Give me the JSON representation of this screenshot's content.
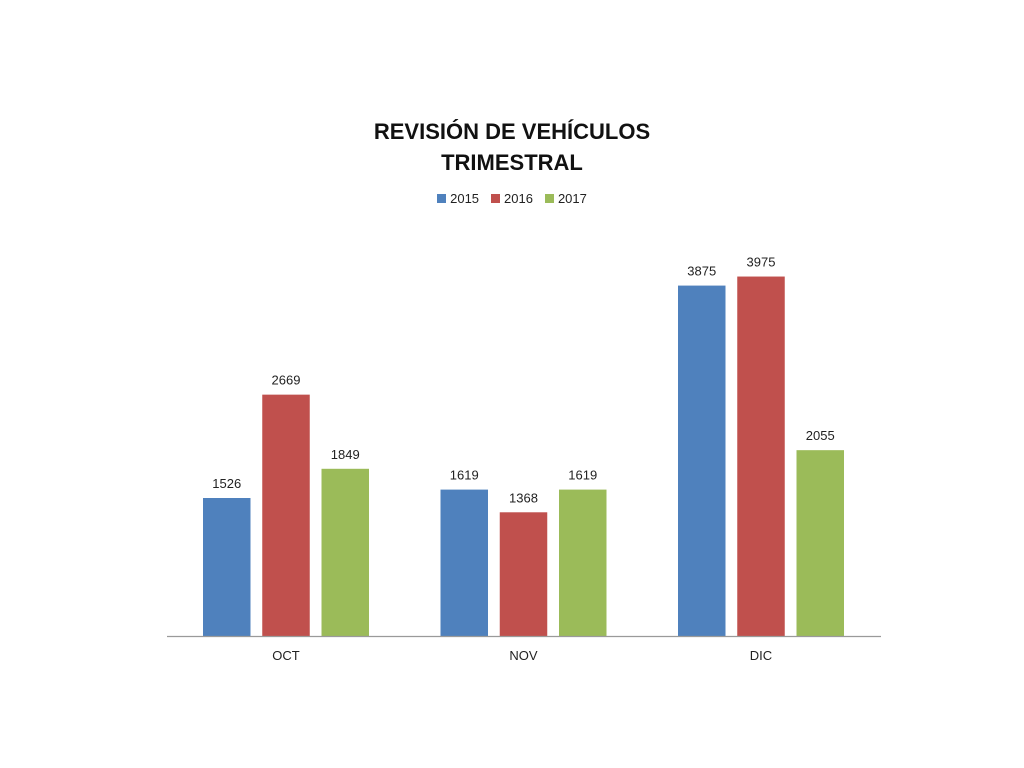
{
  "chart_data": {
    "type": "bar",
    "title_lines": [
      "REVISIÓN DE VEHÍCULOS",
      "TRIMESTRAL"
    ],
    "categories": [
      "OCT",
      "NOV",
      "DIC"
    ],
    "series": [
      {
        "name": "2015",
        "color": "#4F81BD",
        "values": [
          1526,
          1619,
          3875
        ]
      },
      {
        "name": "2016",
        "color": "#C0504D",
        "values": [
          2669,
          1368,
          3975
        ]
      },
      {
        "name": "2017",
        "color": "#9BBB59",
        "values": [
          1849,
          1619,
          2055
        ]
      }
    ],
    "ylim": [
      0,
      4000
    ],
    "grid": false,
    "y_axis_visible": false,
    "data_labels": true,
    "legend_position": "top"
  }
}
